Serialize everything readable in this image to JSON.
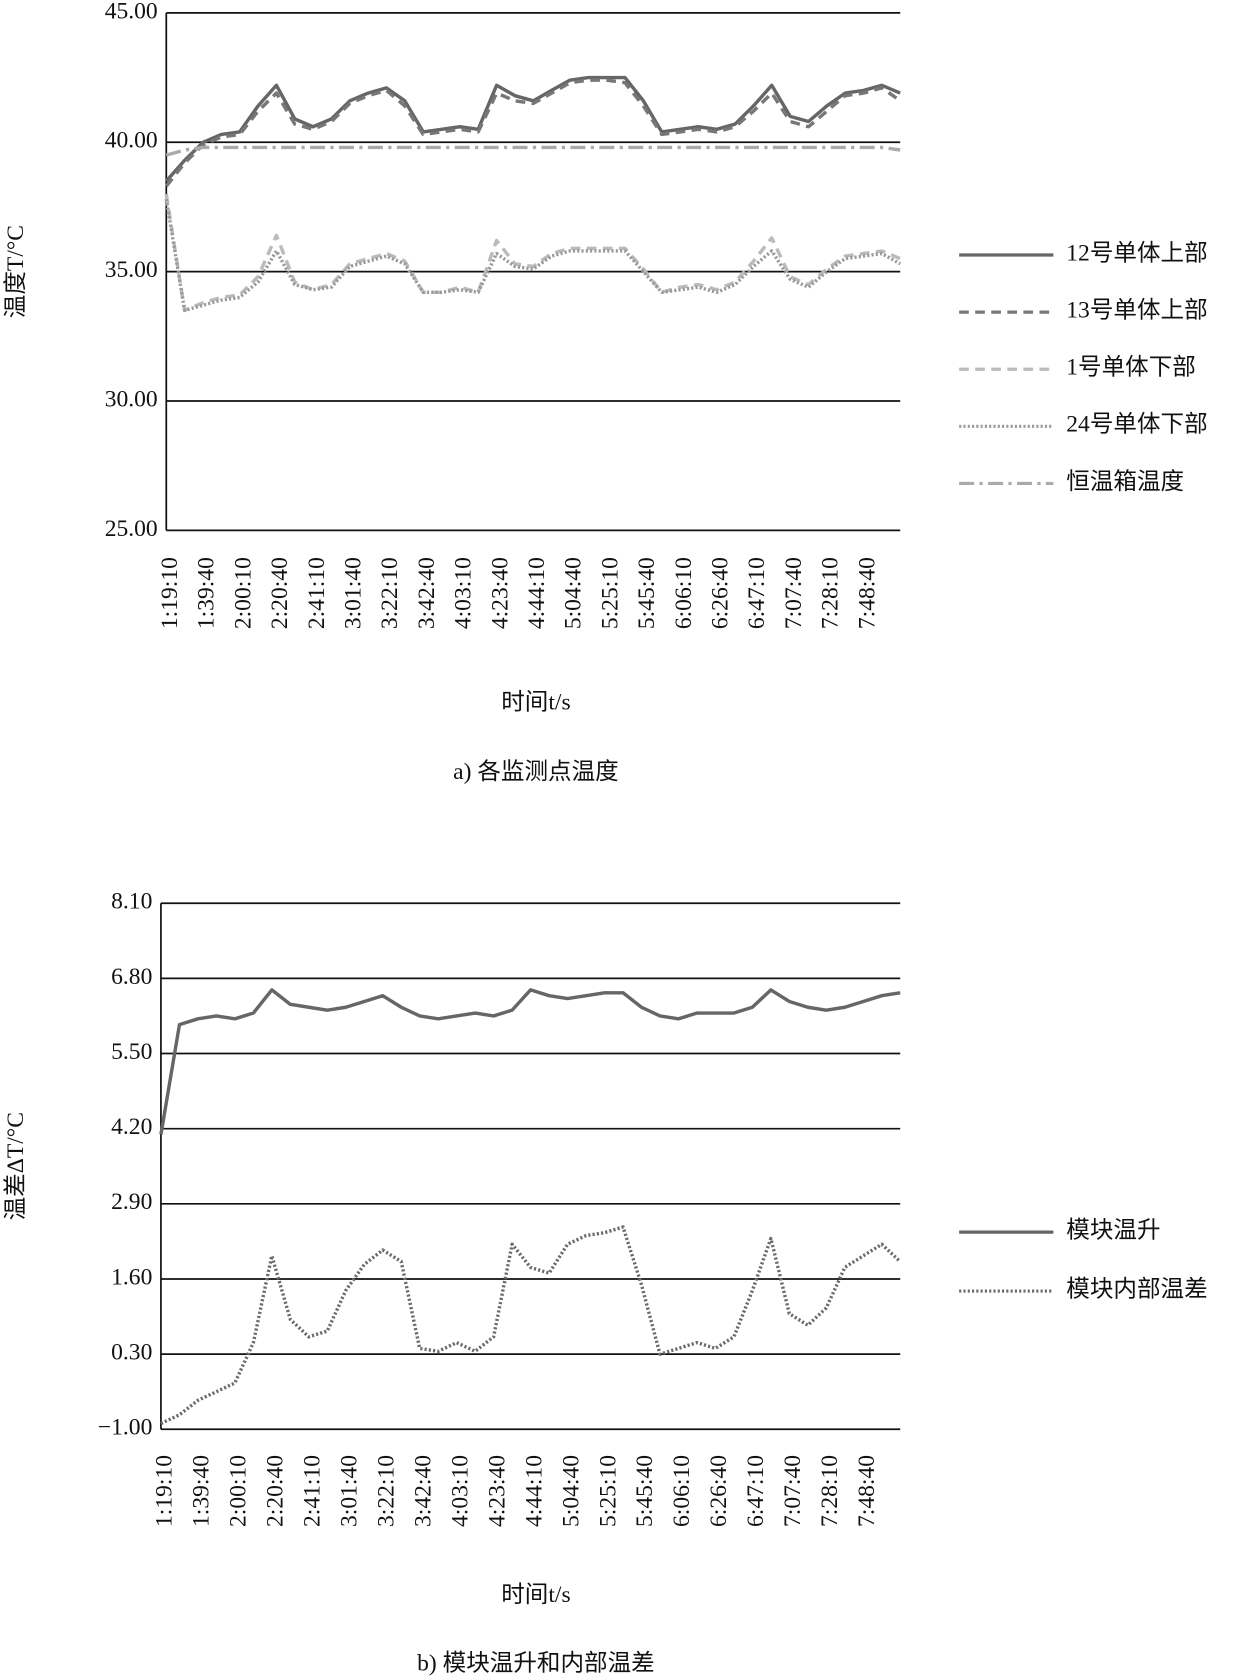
{
  "chart_data": [
    {
      "type": "line",
      "ylabel": "温度T/°C",
      "xlabel": "时间t/s",
      "caption": "a) 各监测点温度",
      "x": [
        "1:19:10",
        null,
        "1:39:40",
        null,
        "2:00:10",
        null,
        "2:20:40",
        null,
        "2:41:10",
        null,
        "3:01:40",
        null,
        "3:22:10",
        null,
        "3:42:40",
        null,
        "4:03:10",
        null,
        "4:23:40",
        null,
        "4:44:10",
        null,
        "5:04:40",
        null,
        "5:25:10",
        null,
        "5:45:40",
        null,
        "6:06:10",
        null,
        "6:26:40",
        null,
        "6:47:10",
        null,
        "7:07:40",
        null,
        "7:28:10",
        null,
        "7:48:40",
        null,
        null
      ],
      "ylim": [
        25,
        45
      ],
      "yticks": [
        {
          "value": 25,
          "label": "25.00"
        },
        {
          "value": 30,
          "label": "30.00"
        },
        {
          "value": 35,
          "label": "35.00"
        },
        {
          "value": 40,
          "label": "40.00"
        },
        {
          "value": 45,
          "label": "45.00"
        }
      ],
      "grid": true,
      "legend": "right",
      "series": [
        {
          "name": "12号单体上部",
          "color": "#666666",
          "dash": "solid",
          "values": [
            38.5,
            39.3,
            40.0,
            40.3,
            40.4,
            41.4,
            42.2,
            40.9,
            40.6,
            40.9,
            41.6,
            41.9,
            42.1,
            41.6,
            40.4,
            40.5,
            40.6,
            40.5,
            42.2,
            41.8,
            41.6,
            42.0,
            42.4,
            42.5,
            42.5,
            42.5,
            41.6,
            40.4,
            40.5,
            40.6,
            40.5,
            40.7,
            41.4,
            42.2,
            41.0,
            40.8,
            41.4,
            41.9,
            42.0,
            42.2,
            41.9
          ]
        },
        {
          "name": "13号单体上部",
          "color": "#777777",
          "dash": "dashed",
          "values": [
            38.3,
            39.2,
            39.9,
            40.2,
            40.3,
            41.2,
            41.9,
            40.7,
            40.5,
            40.8,
            41.5,
            41.8,
            42.0,
            41.4,
            40.3,
            40.4,
            40.5,
            40.4,
            41.9,
            41.6,
            41.5,
            41.9,
            42.3,
            42.4,
            42.4,
            42.3,
            41.4,
            40.3,
            40.4,
            40.5,
            40.4,
            40.6,
            41.2,
            41.9,
            40.8,
            40.6,
            41.2,
            41.8,
            41.9,
            42.1,
            41.6
          ]
        },
        {
          "name": "1号单体下部",
          "color": "#bbbbbb",
          "dash": "dashed",
          "values": [
            38.0,
            33.5,
            33.8,
            34.0,
            34.1,
            34.8,
            36.4,
            34.6,
            34.3,
            34.5,
            35.3,
            35.5,
            35.7,
            35.4,
            34.2,
            34.2,
            34.4,
            34.2,
            36.2,
            35.3,
            35.2,
            35.7,
            35.9,
            35.9,
            35.9,
            35.9,
            35.1,
            34.2,
            34.4,
            34.5,
            34.3,
            34.6,
            35.4,
            36.3,
            34.8,
            34.5,
            35.1,
            35.6,
            35.7,
            35.8,
            35.5
          ]
        },
        {
          "name": "24号单体下部",
          "color": "#999999",
          "dash": "dotted",
          "values": [
            37.8,
            33.5,
            33.7,
            33.9,
            34.0,
            34.6,
            35.8,
            34.5,
            34.3,
            34.4,
            35.2,
            35.4,
            35.6,
            35.3,
            34.2,
            34.2,
            34.3,
            34.2,
            35.7,
            35.2,
            35.1,
            35.6,
            35.8,
            35.8,
            35.8,
            35.8,
            35.0,
            34.2,
            34.3,
            34.4,
            34.2,
            34.5,
            35.2,
            35.8,
            34.7,
            34.4,
            35.0,
            35.5,
            35.6,
            35.7,
            35.3
          ]
        },
        {
          "name": "恒温箱温度",
          "color": "#aaaaaa",
          "dash": "dashdot",
          "values": [
            39.5,
            39.7,
            39.8,
            39.8,
            39.8,
            39.8,
            39.8,
            39.8,
            39.8,
            39.8,
            39.8,
            39.8,
            39.8,
            39.8,
            39.8,
            39.8,
            39.8,
            39.8,
            39.8,
            39.8,
            39.8,
            39.8,
            39.8,
            39.8,
            39.8,
            39.8,
            39.8,
            39.8,
            39.8,
            39.8,
            39.8,
            39.8,
            39.8,
            39.8,
            39.8,
            39.8,
            39.8,
            39.8,
            39.8,
            39.8,
            39.7
          ]
        }
      ]
    },
    {
      "type": "line",
      "ylabel": "温差ΔT/°C",
      "xlabel": "时间t/s",
      "caption": "b) 模块温升和内部温差",
      "x": [
        "1:19:10",
        null,
        "1:39:40",
        null,
        "2:00:10",
        null,
        "2:20:40",
        null,
        "2:41:10",
        null,
        "3:01:40",
        null,
        "3:22:10",
        null,
        "3:42:40",
        null,
        "4:03:10",
        null,
        "4:23:40",
        null,
        "4:44:10",
        null,
        "5:04:40",
        null,
        "5:25:10",
        null,
        "5:45:40",
        null,
        "6:06:10",
        null,
        "6:26:40",
        null,
        "6:47:10",
        null,
        "7:07:40",
        null,
        "7:28:10",
        null,
        "7:48:40",
        null,
        null
      ],
      "ylim": [
        -1,
        8.1
      ],
      "yticks": [
        {
          "value": -1,
          "label": "−1.00"
        },
        {
          "value": 0.3,
          "label": "0.30"
        },
        {
          "value": 1.6,
          "label": "1.60"
        },
        {
          "value": 2.9,
          "label": "2.90"
        },
        {
          "value": 4.2,
          "label": "4.20"
        },
        {
          "value": 5.5,
          "label": "5.50"
        },
        {
          "value": 6.8,
          "label": "6.80"
        },
        {
          "value": 8.1,
          "label": "8.10"
        }
      ],
      "grid": true,
      "legend": "right",
      "series": [
        {
          "name": "模块温升",
          "color": "#666666",
          "dash": "solid",
          "values": [
            4.1,
            6.0,
            6.1,
            6.15,
            6.1,
            6.2,
            6.6,
            6.35,
            6.3,
            6.25,
            6.3,
            6.4,
            6.5,
            6.3,
            6.15,
            6.1,
            6.15,
            6.2,
            6.15,
            6.25,
            6.6,
            6.5,
            6.45,
            6.5,
            6.55,
            6.55,
            6.3,
            6.15,
            6.1,
            6.2,
            6.2,
            6.2,
            6.3,
            6.6,
            6.4,
            6.3,
            6.25,
            6.3,
            6.4,
            6.5,
            6.55
          ]
        },
        {
          "name": "模块内部温差",
          "color": "#6a6a6a",
          "dash": "dotted",
          "values": [
            -0.9,
            -0.75,
            -0.5,
            -0.35,
            -0.2,
            0.5,
            2.0,
            0.9,
            0.6,
            0.7,
            1.4,
            1.85,
            2.1,
            1.9,
            0.4,
            0.35,
            0.5,
            0.35,
            0.6,
            2.2,
            1.8,
            1.7,
            2.2,
            2.35,
            2.4,
            2.5,
            1.5,
            0.3,
            0.4,
            0.5,
            0.4,
            0.6,
            1.4,
            2.3,
            1.0,
            0.8,
            1.1,
            1.8,
            2.0,
            2.2,
            1.9
          ]
        }
      ]
    }
  ]
}
